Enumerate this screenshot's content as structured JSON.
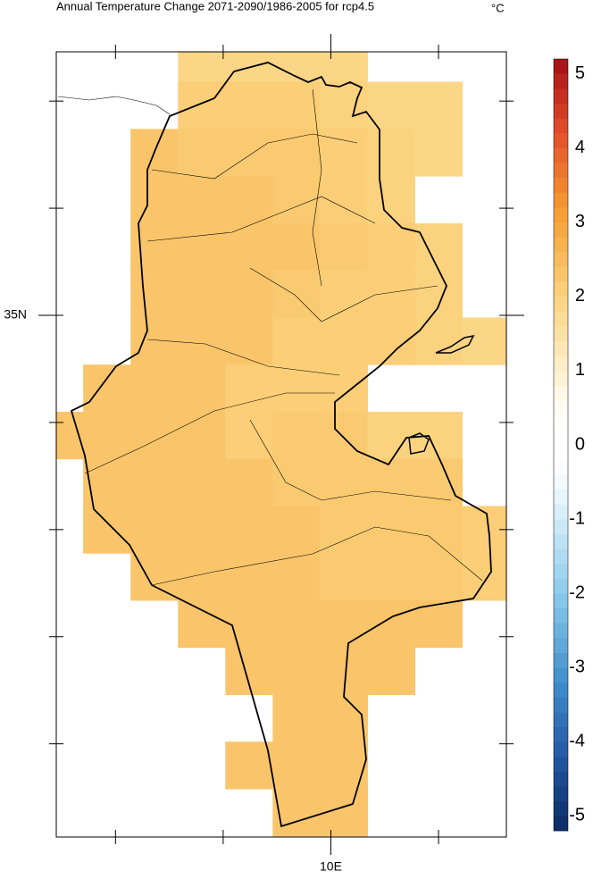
{
  "chart_data": {
    "type": "gridmap",
    "title": "Annual Temperature Change 2071-2090/1986-2005 for rcp4.5",
    "units": "°C",
    "xlim": [
      7.45,
      11.63
    ],
    "ylim": [
      30.13,
      37.46
    ],
    "xticks": [
      8,
      9,
      {
        "value": 10,
        "label": "10E"
      },
      11
    ],
    "yticks": [
      31,
      32,
      33,
      34,
      {
        "value": 35,
        "label": "35N"
      },
      36,
      37
    ],
    "grid": {
      "lon_start": 7.26,
      "lat_start": 37.62,
      "step": 0.44,
      "values": [
        [
          null,
          null,
          null,
          1.9,
          1.9,
          1.9,
          1.9,
          null,
          null,
          null
        ],
        [
          null,
          null,
          null,
          2.1,
          2.1,
          2.1,
          2.0,
          1.9,
          1.9,
          null
        ],
        [
          null,
          null,
          2.3,
          2.2,
          2.2,
          2.2,
          2.1,
          2.0,
          1.9,
          null
        ],
        [
          null,
          null,
          2.3,
          2.3,
          2.3,
          2.2,
          2.1,
          2.0,
          null,
          null
        ],
        [
          null,
          null,
          2.3,
          2.3,
          2.3,
          2.3,
          2.2,
          2.1,
          2.0,
          null
        ],
        [
          null,
          null,
          2.3,
          2.3,
          2.3,
          2.2,
          2.1,
          2.1,
          2.0,
          null
        ],
        [
          null,
          null,
          2.3,
          2.3,
          2.3,
          2.1,
          2.1,
          2.1,
          2.0,
          1.9
        ],
        [
          null,
          2.3,
          2.3,
          2.3,
          2.1,
          2.1,
          2.1,
          null,
          null,
          null
        ],
        [
          2.3,
          2.3,
          2.3,
          2.3,
          2.1,
          2.2,
          2.2,
          2.0,
          2.0,
          null
        ],
        [
          null,
          2.3,
          2.3,
          2.3,
          2.3,
          2.2,
          2.2,
          2.2,
          2.2,
          null
        ],
        [
          null,
          2.3,
          2.3,
          2.3,
          2.3,
          2.3,
          2.2,
          2.2,
          2.2,
          2.1
        ],
        [
          null,
          null,
          2.3,
          2.3,
          2.3,
          2.3,
          2.2,
          2.2,
          2.2,
          2.1
        ],
        [
          null,
          null,
          null,
          2.3,
          2.3,
          2.3,
          2.3,
          2.3,
          2.3,
          null
        ],
        [
          null,
          null,
          null,
          null,
          2.3,
          2.3,
          2.3,
          2.3,
          null,
          null
        ],
        [
          null,
          null,
          null,
          null,
          null,
          2.3,
          2.3,
          null,
          null,
          null
        ],
        [
          null,
          null,
          null,
          null,
          2.3,
          2.3,
          2.3,
          null,
          null,
          null
        ],
        [
          null,
          null,
          null,
          null,
          null,
          2.3,
          2.3,
          null,
          null,
          null
        ]
      ]
    },
    "colorbar": {
      "lim": [
        -5.2,
        5.2
      ],
      "step": 0.2,
      "ticks": [
        5,
        4,
        3,
        2,
        1,
        0,
        -1,
        -2,
        -3,
        -4,
        -5
      ]
    },
    "colormap": [
      [
        -5.2,
        "#0b2a63"
      ],
      [
        -4.2,
        "#2456a4"
      ],
      [
        -3.2,
        "#3f8fcc"
      ],
      [
        -2.0,
        "#8ccbec"
      ],
      [
        -0.6,
        "#eef8fd"
      ],
      [
        -0.2,
        "#ffffff"
      ],
      [
        0.2,
        "#ffffff"
      ],
      [
        0.6,
        "#fffbee"
      ],
      [
        2.0,
        "#fbd37e"
      ],
      [
        3.2,
        "#f59a2f"
      ],
      [
        4.2,
        "#e3502b"
      ],
      [
        5.2,
        "#a50f15"
      ]
    ]
  }
}
